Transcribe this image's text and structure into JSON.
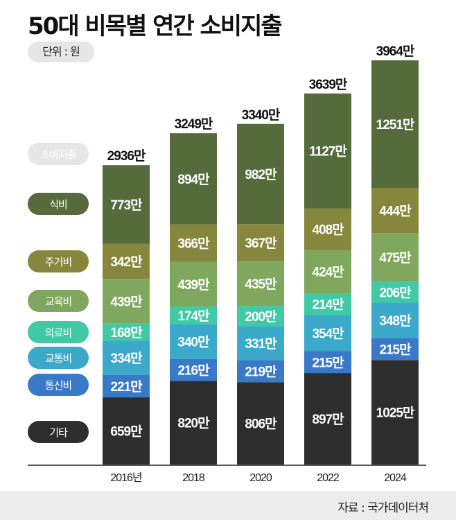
{
  "chart_data": {
    "type": "bar",
    "stacked": true,
    "title": "50대 비목별 연간 소비지출",
    "unit_label": "단위 : 원",
    "total_label": "소비지출",
    "value_suffix": "만",
    "categories": [
      "2016년",
      "2018",
      "2020",
      "2022",
      "2024"
    ],
    "totals": [
      2936,
      3249,
      3340,
      3639,
      3964
    ],
    "series": [
      {
        "name": "기타",
        "color": "#2e2e2e",
        "values": [
          659,
          820,
          806,
          897,
          1025
        ]
      },
      {
        "name": "통신비",
        "color": "#3a79c8",
        "values": [
          221,
          216,
          219,
          215,
          215
        ]
      },
      {
        "name": "교통비",
        "color": "#3ba9c9",
        "values": [
          334,
          340,
          331,
          354,
          348
        ]
      },
      {
        "name": "의료비",
        "color": "#3fc9a5",
        "values": [
          168,
          174,
          200,
          214,
          206
        ]
      },
      {
        "name": "교육비",
        "color": "#7fa85e",
        "values": [
          439,
          439,
          435,
          424,
          475
        ]
      },
      {
        "name": "주거비",
        "color": "#86873c",
        "values": [
          342,
          366,
          367,
          408,
          444
        ]
      },
      {
        "name": "식비",
        "color": "#566b3c",
        "values": [
          773,
          894,
          982,
          1127,
          1251
        ]
      }
    ],
    "ylim": [
      0,
      3964
    ],
    "grid": false,
    "legend_placement": "left",
    "total_pill_color": "#e6e6e6",
    "source": "자료 : 국가데이터처"
  }
}
